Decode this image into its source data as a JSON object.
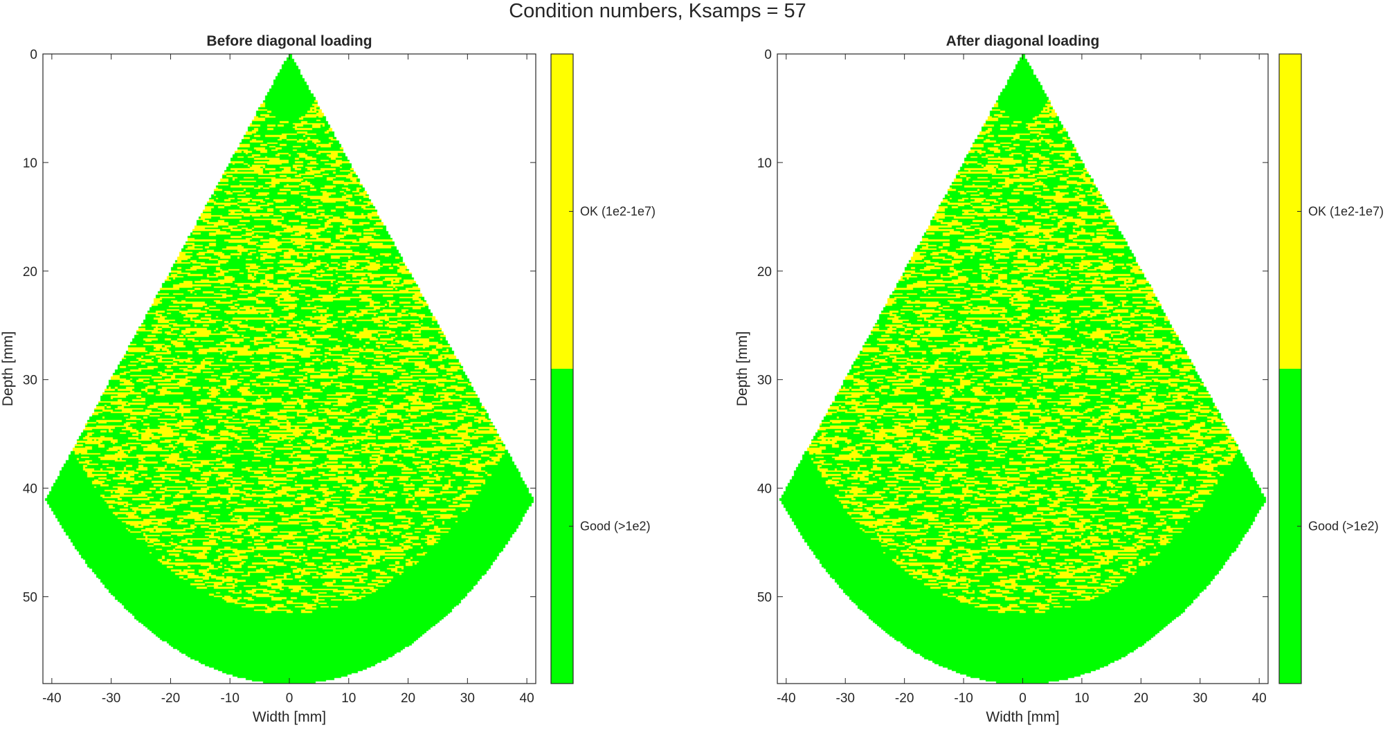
{
  "figure": {
    "suptitle": "Condition numbers, Ksamps = 57"
  },
  "chart_data": [
    {
      "type": "heatmap",
      "title": "Before diagonal loading",
      "xlabel": "Width [mm]",
      "ylabel": "Depth [mm]",
      "xlim": [
        -41.5,
        41.5
      ],
      "ylim": [
        0,
        58
      ],
      "y_reversed": true,
      "xticks": [
        -40,
        -30,
        -20,
        -10,
        0,
        10,
        20,
        30,
        40
      ],
      "yticks": [
        0,
        10,
        20,
        30,
        40,
        50
      ],
      "sector": {
        "apex": [
          0,
          0
        ],
        "half_angle_deg": 45,
        "outer_radius": 58,
        "near_good_radius": 6.2,
        "far_good_inner_radius": 51.6
      },
      "categories": [
        {
          "name": "Good (>1e2)",
          "color": "#00ff00"
        },
        {
          "name": "OK (1e2-1e7)",
          "color": "#ffff00"
        }
      ],
      "ok_fraction_in_mixed_band": 0.4,
      "colorbar": {
        "labels": [
          "Good (>1e2)",
          "OK (1e2-1e7)"
        ],
        "colors": [
          "#00ff00",
          "#ffff00"
        ]
      }
    },
    {
      "type": "heatmap",
      "title": "After diagonal loading",
      "xlabel": "Width [mm]",
      "ylabel": "Depth [mm]",
      "xlim": [
        -41.5,
        41.5
      ],
      "ylim": [
        0,
        58
      ],
      "y_reversed": true,
      "xticks": [
        -40,
        -30,
        -20,
        -10,
        0,
        10,
        20,
        30,
        40
      ],
      "yticks": [
        0,
        10,
        20,
        30,
        40,
        50
      ],
      "sector": {
        "apex": [
          0,
          0
        ],
        "half_angle_deg": 45,
        "outer_radius": 58,
        "near_good_radius": 6.2,
        "far_good_inner_radius": 51.6
      },
      "categories": [
        {
          "name": "Good (>1e2)",
          "color": "#00ff00"
        },
        {
          "name": "OK (1e2-1e7)",
          "color": "#ffff00"
        }
      ],
      "ok_fraction_in_mixed_band": 0.4,
      "colorbar": {
        "labels": [
          "Good (>1e2)",
          "OK (1e2-1e7)"
        ],
        "colors": [
          "#00ff00",
          "#ffff00"
        ]
      }
    }
  ]
}
